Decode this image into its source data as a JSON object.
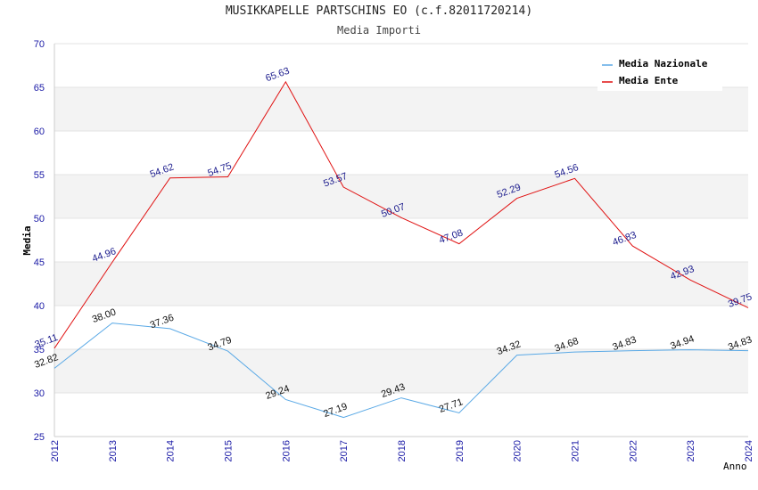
{
  "chart_data": {
    "type": "line",
    "title": "MUSIKKAPELLE PARTSCHINS EO (c.f.82011720214)",
    "subtitle": "Media Importi",
    "xlabel": "Anno",
    "ylabel": "Media",
    "ylim": [
      25,
      70
    ],
    "yticks": [
      "25",
      "30",
      "35",
      "40",
      "45",
      "50",
      "55",
      "60",
      "65",
      "70"
    ],
    "categories": [
      "2012",
      "2013",
      "2014",
      "2015",
      "2016",
      "2017",
      "2018",
      "2019",
      "2020",
      "2021",
      "2022",
      "2023",
      "2024"
    ],
    "legend_position": "top-right",
    "grid": true,
    "series": [
      {
        "name": "Media Nazionale",
        "color": "#5aa9e6",
        "values": [
          32.82,
          38.0,
          37.36,
          34.79,
          29.24,
          27.19,
          29.43,
          27.71,
          34.32,
          34.68,
          34.83,
          34.94,
          34.83
        ],
        "labels": [
          "32.82",
          "38.00",
          "37.36",
          "34.79",
          "29.24",
          "27.19",
          "29.43",
          "27.71",
          "34.32",
          "34.68",
          "34.83",
          "34.94",
          "34.83"
        ]
      },
      {
        "name": "Media Ente",
        "color": "#e01010",
        "values": [
          35.11,
          44.96,
          54.62,
          54.75,
          65.63,
          53.57,
          50.07,
          47.08,
          52.29,
          54.56,
          46.83,
          42.93,
          39.75
        ],
        "labels": [
          "35.11",
          "44.96",
          "54.62",
          "54.75",
          "65.63",
          "53.57",
          "50.07",
          "47.08",
          "52.29",
          "54.56",
          "46.83",
          "42.93",
          "39.75"
        ]
      }
    ]
  }
}
